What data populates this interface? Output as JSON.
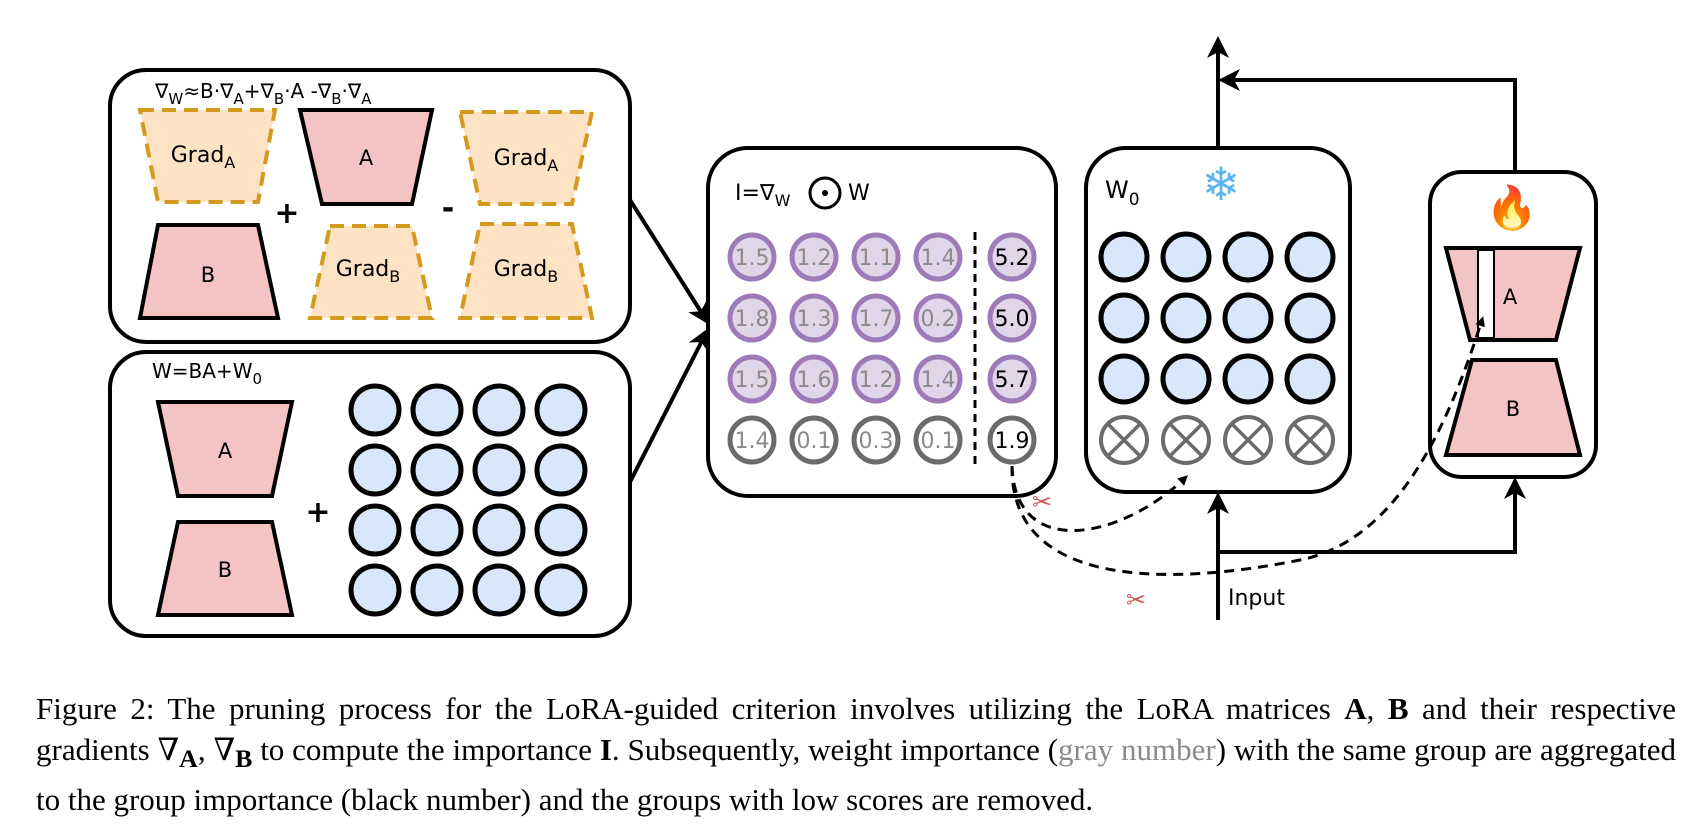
{
  "gradient_panel": {
    "formula_nabla": "∇",
    "formula_sub_w": "W",
    "formula_approx": "≈B·",
    "formula_nabla2": "∇",
    "formula_sub_a": "A",
    "formula_plus": "+",
    "formula_nabla3": "∇",
    "formula_sub_b": "B",
    "formula_dot_a": "·A -",
    "formula_nabla4": "∇",
    "formula_sub_b2": "B",
    "formula_dot": "·",
    "formula_nabla5": "∇",
    "formula_sub_a2": "A",
    "grad_word": "Grad",
    "sub_a": "A",
    "sub_b": "B",
    "label_a": "A",
    "label_b": "B",
    "plus": "+",
    "minus": "-"
  },
  "weight_panel": {
    "formula_main": "W=BA+W",
    "formula_sub": "0",
    "label_a": "A",
    "label_b": "B",
    "plus": "+"
  },
  "importance_panel": {
    "formula_i": "I=",
    "formula_nabla": "∇",
    "formula_sub": "W",
    "formula_w": "W",
    "rows": [
      [
        "1.5",
        "1.2",
        "1.1",
        "1.4"
      ],
      [
        "1.8",
        "1.3",
        "1.7",
        "0.2"
      ],
      [
        "1.5",
        "1.6",
        "1.2",
        "1.4"
      ],
      [
        "1.4",
        "0.1",
        "0.3",
        "0.1"
      ]
    ],
    "group_scores": [
      "5.2",
      "5.0",
      "5.7",
      "1.9"
    ]
  },
  "frozen_panel": {
    "title_main": "W",
    "title_sub": "0",
    "snowflake_glyph": "❄"
  },
  "lora_panel": {
    "fire_glyph": "🔥",
    "label_a": "A",
    "label_b": "B"
  },
  "input_label": "Input",
  "scissors_glyph": "✂",
  "caption": {
    "p1": "Figure 2: The pruning process for the LoRA-guided criterion involves utilizing the LoRA matrices ",
    "A": "A",
    "comma1": ", ",
    "B": "B",
    "p2": " and their respective gradients ",
    "nabla1": "∇",
    "sub_a": "A",
    "comma2": ", ",
    "nabla2": "∇",
    "sub_b": "B",
    "p3": " to compute the importance ",
    "I": "I",
    "p4": ". Subsequently, weight importance (",
    "gray_text": "gray number",
    "p5": ") with the same group are aggregated to the group importance (black number) and the groups with low scores are removed."
  },
  "colors": {
    "pink": "#f4c4c4",
    "peach": "#fde2c4",
    "gold": "#d49a1e",
    "blue": "#d9e7fb",
    "purple_fill": "#e1d5ea",
    "purple_stroke": "#9d7ab8",
    "gray_stroke": "#6b6b6b",
    "gray_text": "#8a8a8a"
  }
}
